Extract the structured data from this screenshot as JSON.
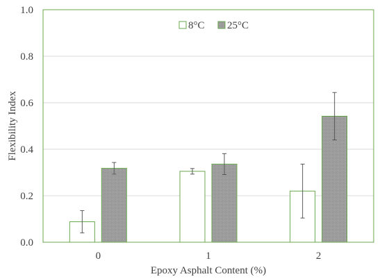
{
  "chart_data": {
    "type": "bar",
    "title": "",
    "xlabel": "Epoxy Asphalt Content (%)",
    "ylabel": "Flexibility Index",
    "categories": [
      "0",
      "1",
      "2"
    ],
    "ylim": [
      0,
      1.0
    ],
    "yticks": [
      "0.0",
      "0.2",
      "0.4",
      "0.6",
      "0.8",
      "1.0"
    ],
    "grid": "horizontal",
    "legend_position": "top-center",
    "series": [
      {
        "name": "8°C",
        "values": [
          0.088,
          0.305,
          0.22
        ],
        "error": [
          0.048,
          0.012,
          0.116
        ],
        "fill": "#ffffff",
        "stroke": "#6aa84f"
      },
      {
        "name": "25°C",
        "values": [
          0.318,
          0.336,
          0.542
        ],
        "error": [
          0.025,
          0.045,
          0.102
        ],
        "fill": "#9e9e9e",
        "stroke": "#6aa84f"
      }
    ],
    "colors": {
      "frame": "#6aa84f",
      "grid": "#d9d9d9",
      "error_bar": "#595959",
      "text": "#404040"
    }
  }
}
